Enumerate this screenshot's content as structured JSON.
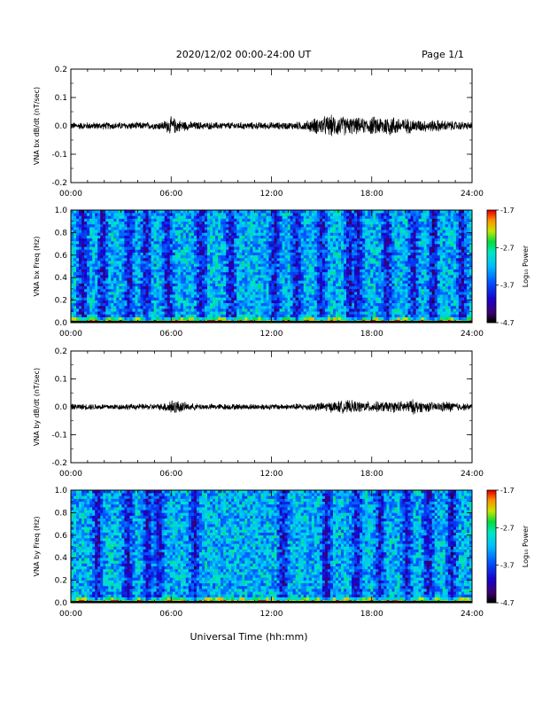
{
  "header": {
    "date_range": "2020/12/02  00:00-24:00 UT",
    "page": "Page 1/1"
  },
  "xaxis": {
    "label": "Universal Time (hh:mm)",
    "ticks": [
      "00:00",
      "06:00",
      "12:00",
      "18:00",
      "24:00"
    ],
    "range_hours": [
      0,
      24
    ]
  },
  "chart_data": [
    {
      "type": "line",
      "title": "",
      "ylabel": "VNA bx dB/dt (nT/sec)",
      "xlabel": "Universal Time (hh:mm)",
      "xlim": [
        0,
        24
      ],
      "ylim": [
        -0.2,
        0.2
      ],
      "yticks": [
        "0.2",
        "0.1",
        "0.0",
        "-0.1",
        "-0.2"
      ],
      "grid": false,
      "series": [
        {
          "x": [
            0,
            1,
            2,
            3,
            4,
            5,
            5.5,
            6,
            6.5,
            7,
            8,
            9,
            10,
            11,
            12,
            13,
            14,
            14.5,
            15,
            15.5,
            16,
            16.5,
            17,
            17.5,
            18,
            18.5,
            19,
            19.5,
            20,
            21,
            22,
            23,
            24
          ],
          "amplitude": [
            0.012,
            0.012,
            0.012,
            0.012,
            0.012,
            0.012,
            0.015,
            0.03,
            0.02,
            0.015,
            0.012,
            0.012,
            0.012,
            0.012,
            0.012,
            0.012,
            0.015,
            0.025,
            0.03,
            0.035,
            0.035,
            0.03,
            0.028,
            0.025,
            0.03,
            0.032,
            0.035,
            0.03,
            0.025,
            0.02,
            0.02,
            0.015,
            0.012
          ]
        }
      ]
    },
    {
      "type": "heatmap",
      "title": "",
      "ylabel": "VNA bx Freq (Hz)",
      "xlabel": "Universal Time (hh:mm)",
      "xlim": [
        0,
        24
      ],
      "ylim": [
        0.0,
        1.0
      ],
      "yticks": [
        "1.0",
        "0.8",
        "0.6",
        "0.4",
        "0.2",
        "0.0"
      ],
      "colorbar": {
        "label": "Log₁₀ Power",
        "ticks": [
          "-1.7",
          "-2.7",
          "-3.7",
          "-4.7"
        ],
        "range": [
          -4.7,
          -1.7
        ]
      },
      "dark_bands_hours": [
        0.7,
        1.9,
        3.5,
        4.5,
        5.8,
        7.8,
        9.6,
        12.2,
        13.5,
        15.0,
        16.7,
        17.2,
        18.9,
        20.5,
        21.7,
        23.4
      ]
    },
    {
      "type": "line",
      "title": "",
      "ylabel": "VNA by dB/dt (nT/sec)",
      "xlabel": "Universal Time (hh:mm)",
      "xlim": [
        0,
        24
      ],
      "ylim": [
        -0.2,
        0.2
      ],
      "yticks": [
        "0.2",
        "0.1",
        "0.0",
        "-0.1",
        "-0.2"
      ],
      "grid": false,
      "series": [
        {
          "x": [
            0,
            1,
            2,
            3,
            4,
            5,
            5.5,
            6,
            6.5,
            7,
            8,
            9,
            10,
            11,
            12,
            13,
            14,
            15,
            16,
            16.5,
            17,
            17.5,
            18,
            19,
            20,
            20.5,
            21,
            22,
            22.5,
            23,
            24
          ],
          "amplitude": [
            0.01,
            0.01,
            0.01,
            0.01,
            0.01,
            0.01,
            0.012,
            0.028,
            0.02,
            0.012,
            0.01,
            0.01,
            0.01,
            0.01,
            0.01,
            0.01,
            0.012,
            0.015,
            0.02,
            0.022,
            0.02,
            0.018,
            0.018,
            0.018,
            0.02,
            0.025,
            0.018,
            0.015,
            0.02,
            0.015,
            0.01
          ]
        }
      ]
    },
    {
      "type": "heatmap",
      "title": "",
      "ylabel": "VNA by Freq (Hz)",
      "xlabel": "Universal Time (hh:mm)",
      "xlim": [
        0,
        24
      ],
      "ylim": [
        0.0,
        1.0
      ],
      "yticks": [
        "1.0",
        "0.8",
        "0.6",
        "0.4",
        "0.2",
        "0.0"
      ],
      "colorbar": {
        "label": "Log₁₀ Power",
        "ticks": [
          "-1.7",
          "-2.7",
          "-3.7",
          "-4.7"
        ],
        "range": [
          -4.7,
          -1.7
        ]
      },
      "dark_bands_hours": [
        1.6,
        3.4,
        4.6,
        5.3,
        7.4,
        12.7,
        15.3,
        17.1,
        18.5,
        20.1,
        21.4,
        22.8
      ]
    }
  ]
}
